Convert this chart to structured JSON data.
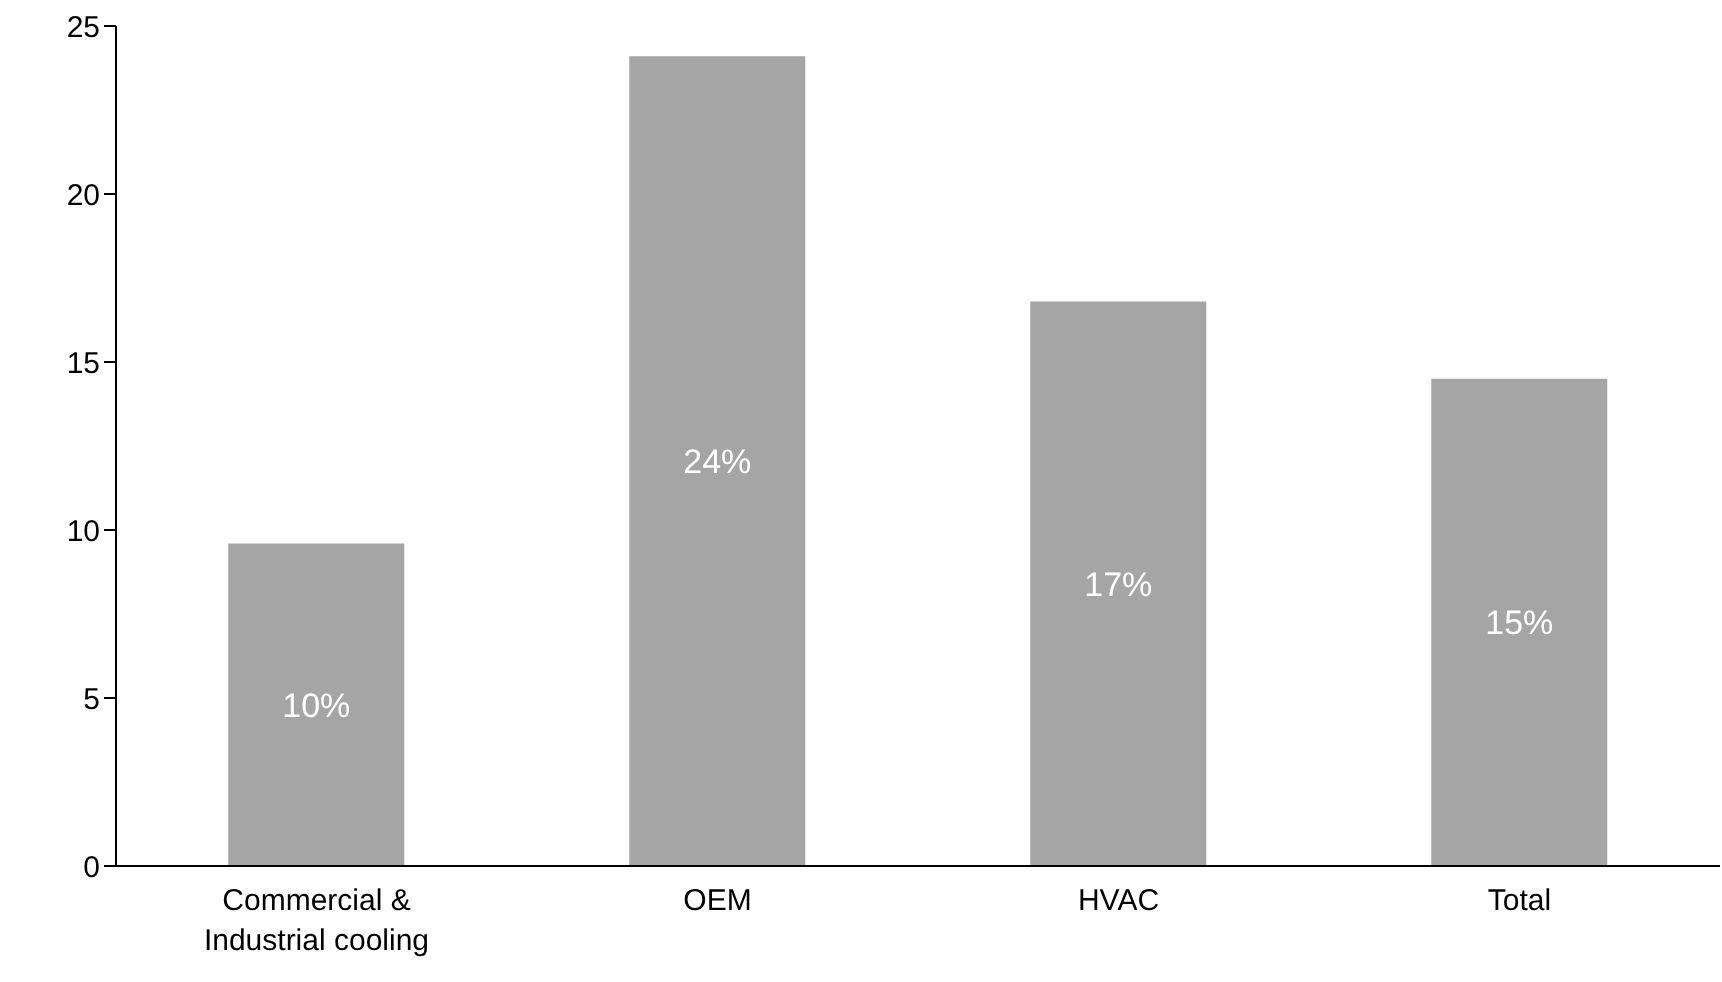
{
  "chart_data": {
    "type": "bar",
    "categories": [
      "Commercial & Industrial cooling",
      "OEM",
      "HVAC",
      "Total"
    ],
    "values": [
      9.6,
      24.1,
      16.8,
      14.5
    ],
    "color": "#a5a5a5",
    "value_labels": [
      "10%",
      "24%",
      "17%",
      "15%"
    ],
    "ylim": [
      0,
      25
    ],
    "yticks": [
      0,
      5,
      10,
      15,
      20,
      25
    ],
    "grid": false,
    "legend": false
  }
}
